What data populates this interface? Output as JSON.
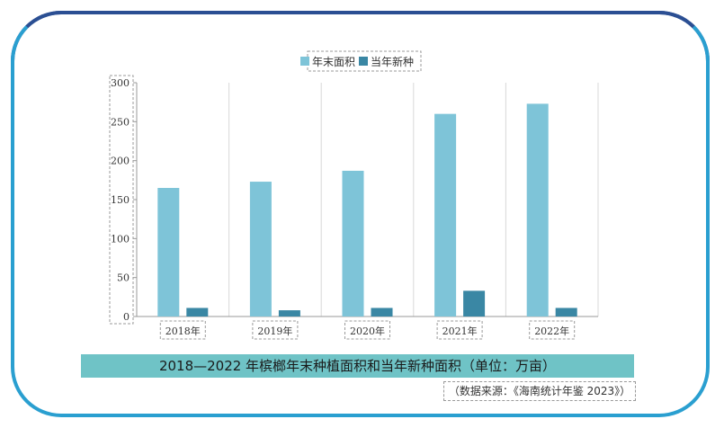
{
  "chart_data": {
    "type": "bar",
    "categories": [
      "2018年",
      "2019年",
      "2020年",
      "2021年",
      "2022年"
    ],
    "series": [
      {
        "name": "年末面积",
        "values": [
          165,
          173,
          187,
          260,
          273
        ]
      },
      {
        "name": "当年新种",
        "values": [
          11,
          8,
          11,
          33,
          11
        ]
      }
    ],
    "ylim": [
      0,
      300
    ],
    "yticks": [
      0,
      50,
      100,
      150,
      200,
      250,
      300
    ],
    "colors": [
      "#7ec4d8",
      "#3a87a4"
    ],
    "legend_position": "top-center",
    "grid": "vertical"
  },
  "caption": "2018—2022 年槟榔年末种植面积和当年新种面积（单位：万亩）",
  "source": "（数据来源：《海南统计年鉴 2023》）"
}
